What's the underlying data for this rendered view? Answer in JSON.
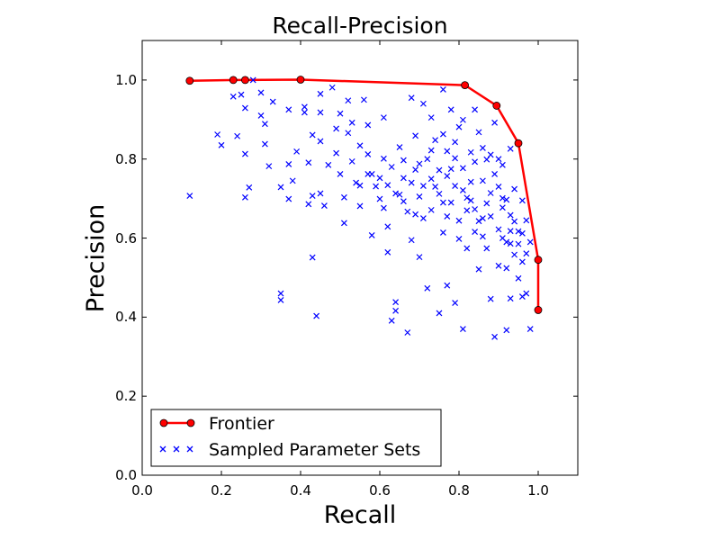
{
  "chart_data": {
    "type": "scatter",
    "title": "Recall-Precision",
    "xlabel": "Recall",
    "ylabel": "Precision",
    "xlim": [
      0.0,
      1.1
    ],
    "ylim": [
      0.0,
      1.1
    ],
    "xticks": [
      "0.0",
      "0.2",
      "0.4",
      "0.6",
      "0.8",
      "1.0"
    ],
    "yticks": [
      "0.0",
      "0.2",
      "0.4",
      "0.6",
      "0.8",
      "1.0"
    ],
    "grid": false,
    "legend_position": "lower-left",
    "series": [
      {
        "name": "Frontier",
        "kind": "line-marker",
        "color": "#ff0000",
        "points": [
          [
            0.12,
            0.998
          ],
          [
            0.23,
            1.0
          ],
          [
            0.26,
            1.0
          ],
          [
            0.4,
            1.001
          ],
          [
            0.815,
            0.987
          ],
          [
            0.895,
            0.935
          ],
          [
            0.95,
            0.84
          ],
          [
            1.0,
            0.545
          ],
          [
            1.0,
            0.418
          ]
        ]
      },
      {
        "name": "Sampled Parameter Sets",
        "kind": "scatter-x",
        "color": "#0000ff",
        "points": [
          [
            0.12,
            0.707
          ],
          [
            0.19,
            0.862
          ],
          [
            0.2,
            0.835
          ],
          [
            0.23,
            0.958
          ],
          [
            0.24,
            0.858
          ],
          [
            0.25,
            0.963
          ],
          [
            0.26,
            0.929
          ],
          [
            0.26,
            0.813
          ],
          [
            0.26,
            0.703
          ],
          [
            0.27,
            0.728
          ],
          [
            0.28,
            1.0
          ],
          [
            0.3,
            0.968
          ],
          [
            0.3,
            0.91
          ],
          [
            0.31,
            0.889
          ],
          [
            0.31,
            0.838
          ],
          [
            0.32,
            0.782
          ],
          [
            0.33,
            0.945
          ],
          [
            0.35,
            0.729
          ],
          [
            0.35,
            0.46
          ],
          [
            0.35,
            0.443
          ],
          [
            0.37,
            0.925
          ],
          [
            0.37,
            0.787
          ],
          [
            0.37,
            0.699
          ],
          [
            0.38,
            0.745
          ],
          [
            0.39,
            0.819
          ],
          [
            0.41,
            0.932
          ],
          [
            0.41,
            0.918
          ],
          [
            0.42,
            0.791
          ],
          [
            0.42,
            0.686
          ],
          [
            0.43,
            0.861
          ],
          [
            0.43,
            0.707
          ],
          [
            0.43,
            0.551
          ],
          [
            0.44,
            0.403
          ],
          [
            0.45,
            0.965
          ],
          [
            0.45,
            0.918
          ],
          [
            0.45,
            0.845
          ],
          [
            0.45,
            0.713
          ],
          [
            0.46,
            0.682
          ],
          [
            0.47,
            0.785
          ],
          [
            0.48,
            0.981
          ],
          [
            0.49,
            0.877
          ],
          [
            0.49,
            0.815
          ],
          [
            0.5,
            0.762
          ],
          [
            0.51,
            0.703
          ],
          [
            0.51,
            0.638
          ],
          [
            0.52,
            0.948
          ],
          [
            0.52,
            0.866
          ],
          [
            0.53,
            0.794
          ],
          [
            0.54,
            0.74
          ],
          [
            0.55,
            0.681
          ],
          [
            0.56,
            0.95
          ],
          [
            0.57,
            0.886
          ],
          [
            0.57,
            0.762
          ],
          [
            0.58,
            0.607
          ],
          [
            0.6,
            0.699
          ],
          [
            0.61,
            0.905
          ],
          [
            0.61,
            0.801
          ],
          [
            0.62,
            0.734
          ],
          [
            0.62,
            0.629
          ],
          [
            0.62,
            0.564
          ],
          [
            0.63,
            0.391
          ],
          [
            0.64,
            0.438
          ],
          [
            0.64,
            0.416
          ],
          [
            0.65,
            0.83
          ],
          [
            0.66,
            0.752
          ],
          [
            0.67,
            0.667
          ],
          [
            0.67,
            0.361
          ],
          [
            0.68,
            0.955
          ],
          [
            0.68,
            0.595
          ],
          [
            0.69,
            0.859
          ],
          [
            0.7,
            0.788
          ],
          [
            0.7,
            0.705
          ],
          [
            0.7,
            0.552
          ],
          [
            0.71,
            0.94
          ],
          [
            0.71,
            0.65
          ],
          [
            0.72,
            0.473
          ],
          [
            0.73,
            0.905
          ],
          [
            0.73,
            0.822
          ],
          [
            0.74,
            0.73
          ],
          [
            0.75,
            0.41
          ],
          [
            0.76,
            0.976
          ],
          [
            0.76,
            0.863
          ],
          [
            0.76,
            0.614
          ],
          [
            0.77,
            0.757
          ],
          [
            0.77,
            0.48
          ],
          [
            0.78,
            0.925
          ],
          [
            0.78,
            0.69
          ],
          [
            0.79,
            0.843
          ],
          [
            0.79,
            0.436
          ],
          [
            0.8,
            0.644
          ],
          [
            0.81,
            0.899
          ],
          [
            0.81,
            0.777
          ],
          [
            0.81,
            0.37
          ],
          [
            0.82,
            0.574
          ],
          [
            0.83,
            0.817
          ],
          [
            0.83,
            0.695
          ],
          [
            0.84,
            0.925
          ],
          [
            0.84,
            0.616
          ],
          [
            0.85,
            0.868
          ],
          [
            0.85,
            0.521
          ],
          [
            0.86,
            0.745
          ],
          [
            0.86,
            0.65
          ],
          [
            0.87,
            0.799
          ],
          [
            0.87,
            0.574
          ],
          [
            0.88,
            0.714
          ],
          [
            0.88,
            0.446
          ],
          [
            0.89,
            0.892
          ],
          [
            0.89,
            0.35
          ],
          [
            0.9,
            0.622
          ],
          [
            0.9,
            0.53
          ],
          [
            0.91,
            0.785
          ],
          [
            0.91,
            0.677
          ],
          [
            0.92,
            0.59
          ],
          [
            0.92,
            0.367
          ],
          [
            0.93,
            0.826
          ],
          [
            0.93,
            0.658
          ],
          [
            0.93,
            0.447
          ],
          [
            0.94,
            0.724
          ],
          [
            0.94,
            0.558
          ],
          [
            0.95,
            0.617
          ],
          [
            0.95,
            0.498
          ],
          [
            0.96,
            0.695
          ],
          [
            0.96,
            0.54
          ],
          [
            0.96,
            0.452
          ],
          [
            0.97,
            0.645
          ],
          [
            0.97,
            0.46
          ],
          [
            0.98,
            0.59
          ],
          [
            0.98,
            0.37
          ],
          [
            0.5,
            0.915
          ],
          [
            0.53,
            0.892
          ],
          [
            0.55,
            0.834
          ],
          [
            0.58,
            0.762
          ],
          [
            0.6,
            0.752
          ],
          [
            0.63,
            0.78
          ],
          [
            0.65,
            0.71
          ],
          [
            0.66,
            0.797
          ],
          [
            0.68,
            0.74
          ],
          [
            0.69,
            0.66
          ],
          [
            0.72,
            0.8
          ],
          [
            0.73,
            0.75
          ],
          [
            0.74,
            0.848
          ],
          [
            0.75,
            0.712
          ],
          [
            0.76,
            0.69
          ],
          [
            0.77,
            0.82
          ],
          [
            0.78,
            0.775
          ],
          [
            0.79,
            0.732
          ],
          [
            0.8,
            0.881
          ],
          [
            0.81,
            0.721
          ],
          [
            0.82,
            0.67
          ],
          [
            0.83,
            0.742
          ],
          [
            0.84,
            0.793
          ],
          [
            0.85,
            0.643
          ],
          [
            0.86,
            0.828
          ],
          [
            0.87,
            0.688
          ],
          [
            0.88,
            0.655
          ],
          [
            0.89,
            0.762
          ],
          [
            0.9,
            0.73
          ],
          [
            0.91,
            0.6
          ],
          [
            0.92,
            0.697
          ],
          [
            0.93,
            0.618
          ],
          [
            0.94,
            0.642
          ],
          [
            0.95,
            0.585
          ],
          [
            0.96,
            0.612
          ],
          [
            0.97,
            0.561
          ],
          [
            0.55,
            0.733
          ],
          [
            0.57,
            0.812
          ],
          [
            0.59,
            0.731
          ],
          [
            0.61,
            0.676
          ],
          [
            0.64,
            0.713
          ],
          [
            0.66,
            0.693
          ],
          [
            0.69,
            0.773
          ],
          [
            0.71,
            0.732
          ],
          [
            0.73,
            0.671
          ],
          [
            0.75,
            0.772
          ],
          [
            0.77,
            0.655
          ],
          [
            0.79,
            0.802
          ],
          [
            0.8,
            0.598
          ],
          [
            0.82,
            0.702
          ],
          [
            0.84,
            0.673
          ],
          [
            0.86,
            0.604
          ],
          [
            0.88,
            0.811
          ],
          [
            0.9,
            0.8
          ],
          [
            0.91,
            0.701
          ],
          [
            0.92,
            0.524
          ],
          [
            0.93,
            0.586
          ]
        ]
      }
    ]
  }
}
